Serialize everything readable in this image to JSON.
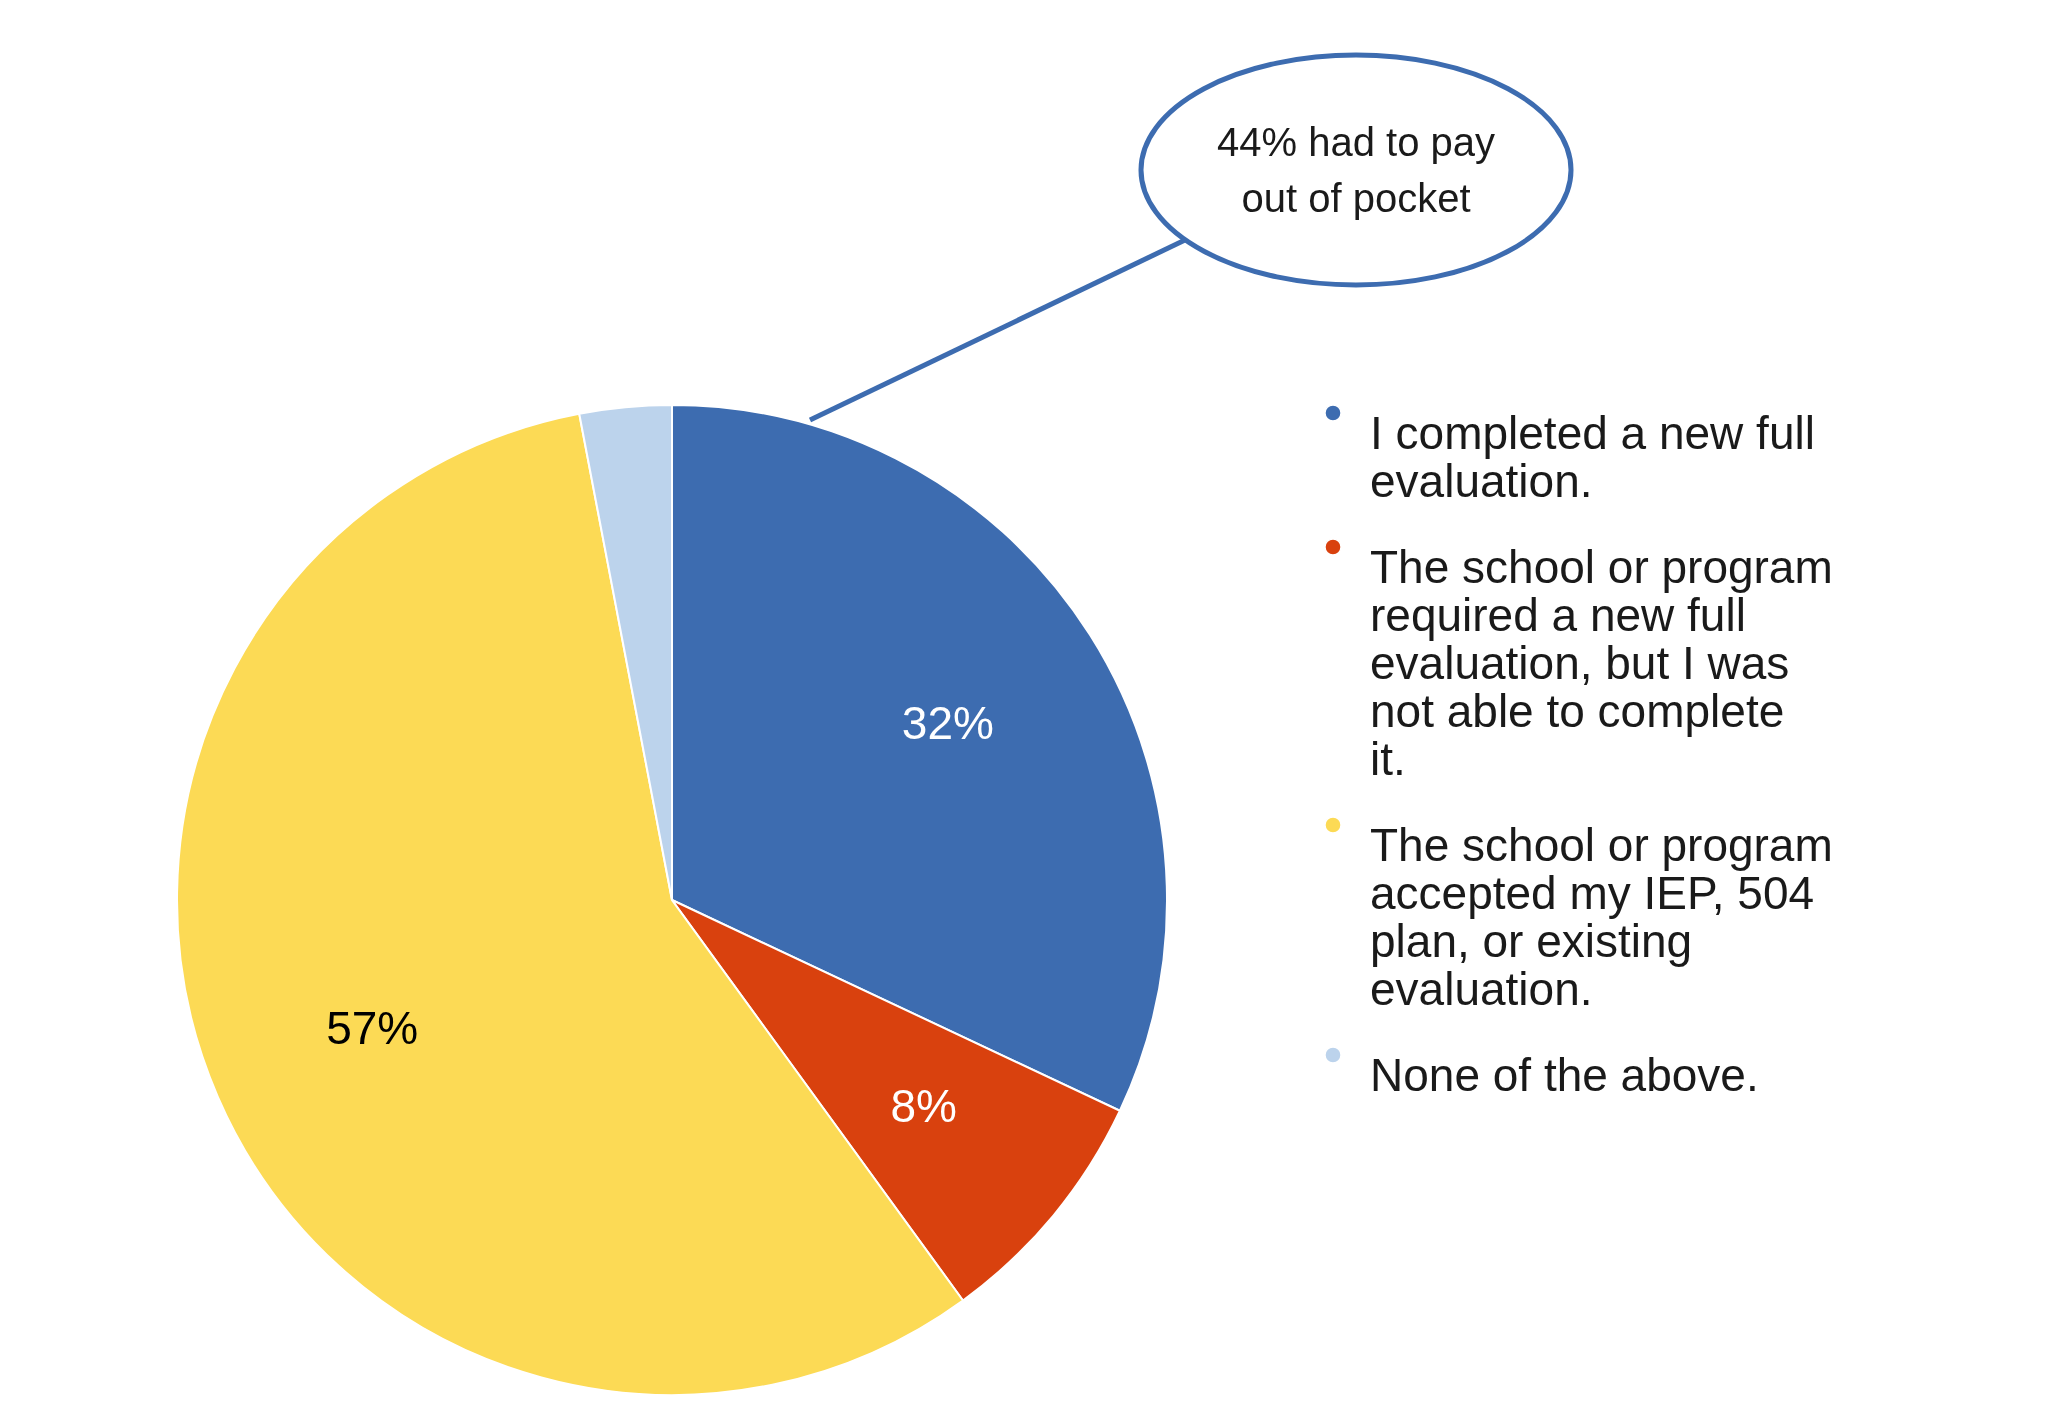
{
  "chart_data": {
    "type": "pie",
    "categories": [
      "I completed a new full evaluation.",
      "The school or program required a new full evaluation, but I was not able to complete it.",
      "The school or program accepted my IEP, 504 plan, or existing evaluation.",
      "None of the above."
    ],
    "values": [
      32,
      8,
      57,
      3
    ],
    "colors": [
      "#3d6cb0",
      "#d9410e",
      "#fcda55",
      "#bcd3ec"
    ],
    "value_labels": [
      "32%",
      "8%",
      "57%",
      null
    ],
    "legend": "right",
    "annotations": [
      "44% had to pay out of pocket"
    ]
  }
}
